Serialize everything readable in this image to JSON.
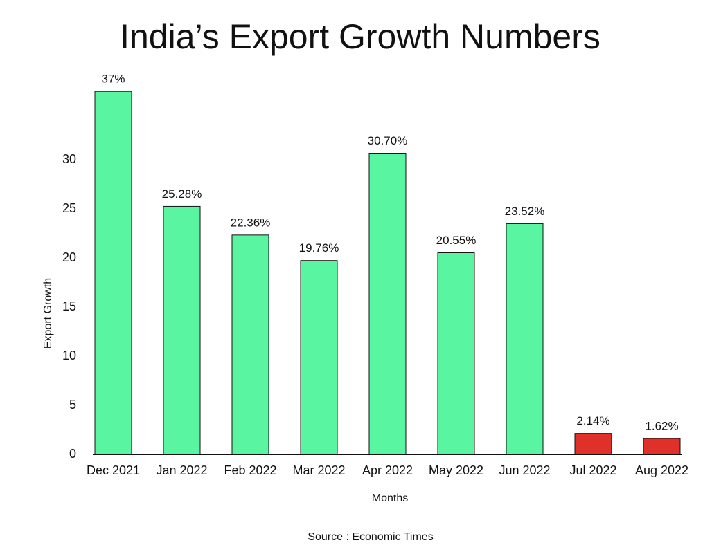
{
  "chart_data": {
    "type": "bar",
    "title": "India’s Export Growth  Numbers",
    "x_label": "Months",
    "y_label": "Export Growth",
    "source": "Source : Economic Times",
    "categories": [
      "Dec 2021",
      "Jan 2022",
      "Feb 2022",
      "Mar 2022",
      "Apr 2022",
      "May 2022",
      "Jun 2022",
      "Jul 2022",
      "Aug 2022"
    ],
    "values": [
      37,
      25.28,
      22.36,
      19.76,
      30.7,
      20.55,
      23.52,
      2.14,
      1.62
    ],
    "value_labels": [
      "37%",
      "25.28%",
      "22.36%",
      "19.76%",
      "30.70%",
      "20.55%",
      "23.52%",
      "2.14%",
      "1.62%"
    ],
    "colors": [
      "#5af5a0",
      "#5af5a0",
      "#5af5a0",
      "#5af5a0",
      "#5af5a0",
      "#5af5a0",
      "#5af5a0",
      "#e0302a",
      "#e0302a"
    ],
    "ylim": [
      0,
      38
    ],
    "yticks": [
      0,
      5,
      10,
      15,
      20,
      25,
      30
    ],
    "grid": false
  }
}
